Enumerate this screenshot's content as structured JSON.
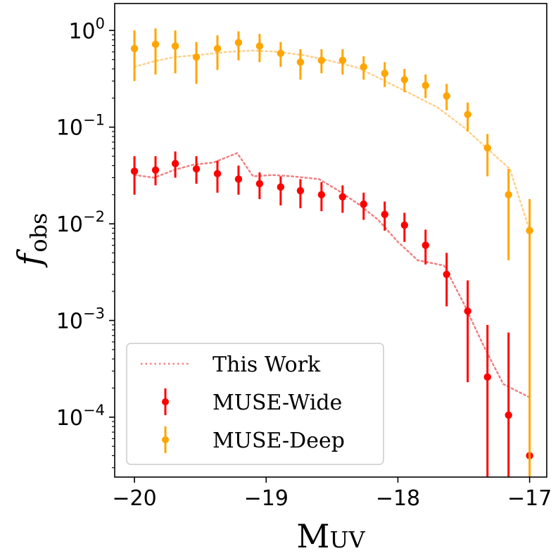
{
  "chart_data": {
    "type": "scatter",
    "title": "",
    "xlabel": {
      "main": "M",
      "sub": "UV"
    },
    "ylabel": {
      "main": "f",
      "sub": "obs"
    },
    "xlim": [
      -20.15,
      -16.87
    ],
    "ylim": [
      2.4e-05,
      1.9
    ],
    "y_scale": "log",
    "grid": false,
    "x_ticks": [
      {
        "value": -20,
        "label": "−20"
      },
      {
        "value": -19,
        "label": "−19"
      },
      {
        "value": -18,
        "label": "−18"
      },
      {
        "value": -17,
        "label": "−17"
      }
    ],
    "y_ticks": [
      {
        "value": 1,
        "base": "10",
        "exp": "0"
      },
      {
        "value": 0.1,
        "base": "10",
        "exp": "−1"
      },
      {
        "value": 0.01,
        "base": "10",
        "exp": "−2"
      },
      {
        "value": 0.001,
        "base": "10",
        "exp": "−3"
      },
      {
        "value": 0.0001,
        "base": "10",
        "exp": "−4"
      }
    ],
    "legend": {
      "position": "lower-left",
      "entries": [
        {
          "label": "This Work",
          "style": "dotted-line",
          "color": "#f08080"
        },
        {
          "label": "MUSE-Wide",
          "style": "errorbar-point",
          "color": "#ff0000"
        },
        {
          "label": "MUSE-Deep",
          "style": "errorbar-point",
          "color": "#ffa500"
        }
      ]
    },
    "series": [
      {
        "name": "This Work (Wide)",
        "kind": "line",
        "color": "#f08080",
        "x": [
          -20.0,
          -19.85,
          -19.7,
          -19.55,
          -19.4,
          -19.22,
          -19.1,
          -18.95,
          -18.8,
          -18.6,
          -18.45,
          -18.3,
          -18.15,
          -18.0,
          -17.85,
          -17.65,
          -17.5,
          -17.35,
          -17.2,
          -17.0
        ],
        "y": [
          0.032,
          0.03,
          0.036,
          0.041,
          0.043,
          0.054,
          0.031,
          0.032,
          0.031,
          0.029,
          0.022,
          0.016,
          0.011,
          0.0065,
          0.0042,
          0.0037,
          0.0015,
          0.00055,
          0.00022,
          0.00016
        ]
      },
      {
        "name": "This Work (Deep)",
        "kind": "line",
        "color": "#ffd08a",
        "x": [
          -20.0,
          -19.85,
          -19.7,
          -19.5,
          -19.3,
          -19.1,
          -18.9,
          -18.7,
          -18.5,
          -18.3,
          -18.1,
          -17.9,
          -17.7,
          -17.5,
          -17.35,
          -17.15,
          -17.0
        ],
        "y": [
          0.42,
          0.48,
          0.53,
          0.56,
          0.6,
          0.62,
          0.6,
          0.55,
          0.48,
          0.41,
          0.3,
          0.22,
          0.16,
          0.1,
          0.065,
          0.037,
          0.0085
        ]
      },
      {
        "name": "MUSE-Wide",
        "kind": "errorbar",
        "color": "#ff0000",
        "x": [
          -20.0,
          -19.84,
          -19.69,
          -19.53,
          -19.37,
          -19.21,
          -19.05,
          -18.89,
          -18.74,
          -18.58,
          -18.42,
          -18.26,
          -18.1,
          -17.95,
          -17.79,
          -17.63,
          -17.47,
          -17.32,
          -17.16,
          -17.0
        ],
        "y": [
          0.035,
          0.036,
          0.042,
          0.037,
          0.033,
          0.029,
          0.026,
          0.024,
          0.022,
          0.02,
          0.019,
          0.016,
          0.0125,
          0.0097,
          0.006,
          0.003,
          0.00125,
          0.00026,
          0.000105,
          4e-05
        ],
        "lo": [
          0.02,
          0.025,
          0.03,
          0.026,
          0.021,
          0.02,
          0.018,
          0.0155,
          0.0145,
          0.0135,
          0.013,
          0.011,
          0.0085,
          0.0065,
          0.0038,
          0.0014,
          0.00023,
          2.4e-05,
          2.4e-05,
          null
        ],
        "hi": [
          0.05,
          0.05,
          0.056,
          0.05,
          0.045,
          0.04,
          0.034,
          0.031,
          0.029,
          0.027,
          0.025,
          0.021,
          0.017,
          0.013,
          0.0087,
          0.005,
          0.0026,
          0.0009,
          0.00075,
          null
        ]
      },
      {
        "name": "MUSE-Deep",
        "kind": "errorbar",
        "color": "#ffa500",
        "x": [
          -20.0,
          -19.84,
          -19.69,
          -19.53,
          -19.37,
          -19.21,
          -19.05,
          -18.89,
          -18.74,
          -18.58,
          -18.42,
          -18.26,
          -18.1,
          -17.95,
          -17.79,
          -17.63,
          -17.47,
          -17.32,
          -17.16,
          -17.0
        ],
        "y": [
          0.65,
          0.72,
          0.69,
          0.53,
          0.65,
          0.75,
          0.69,
          0.58,
          0.47,
          0.49,
          0.49,
          0.42,
          0.36,
          0.31,
          0.27,
          0.21,
          0.135,
          0.061,
          0.02,
          0.0085
        ],
        "lo": [
          0.3,
          0.35,
          0.36,
          0.28,
          0.39,
          0.49,
          0.47,
          0.42,
          0.31,
          0.36,
          0.35,
          0.31,
          0.26,
          0.23,
          0.2,
          0.15,
          0.09,
          0.031,
          0.0042,
          2.4e-05
        ],
        "hi": [
          1.0,
          1.05,
          1.0,
          0.76,
          0.89,
          0.98,
          0.92,
          0.76,
          0.64,
          0.64,
          0.64,
          0.54,
          0.47,
          0.4,
          0.35,
          0.28,
          0.18,
          0.085,
          0.037,
          0.018
        ]
      }
    ]
  }
}
